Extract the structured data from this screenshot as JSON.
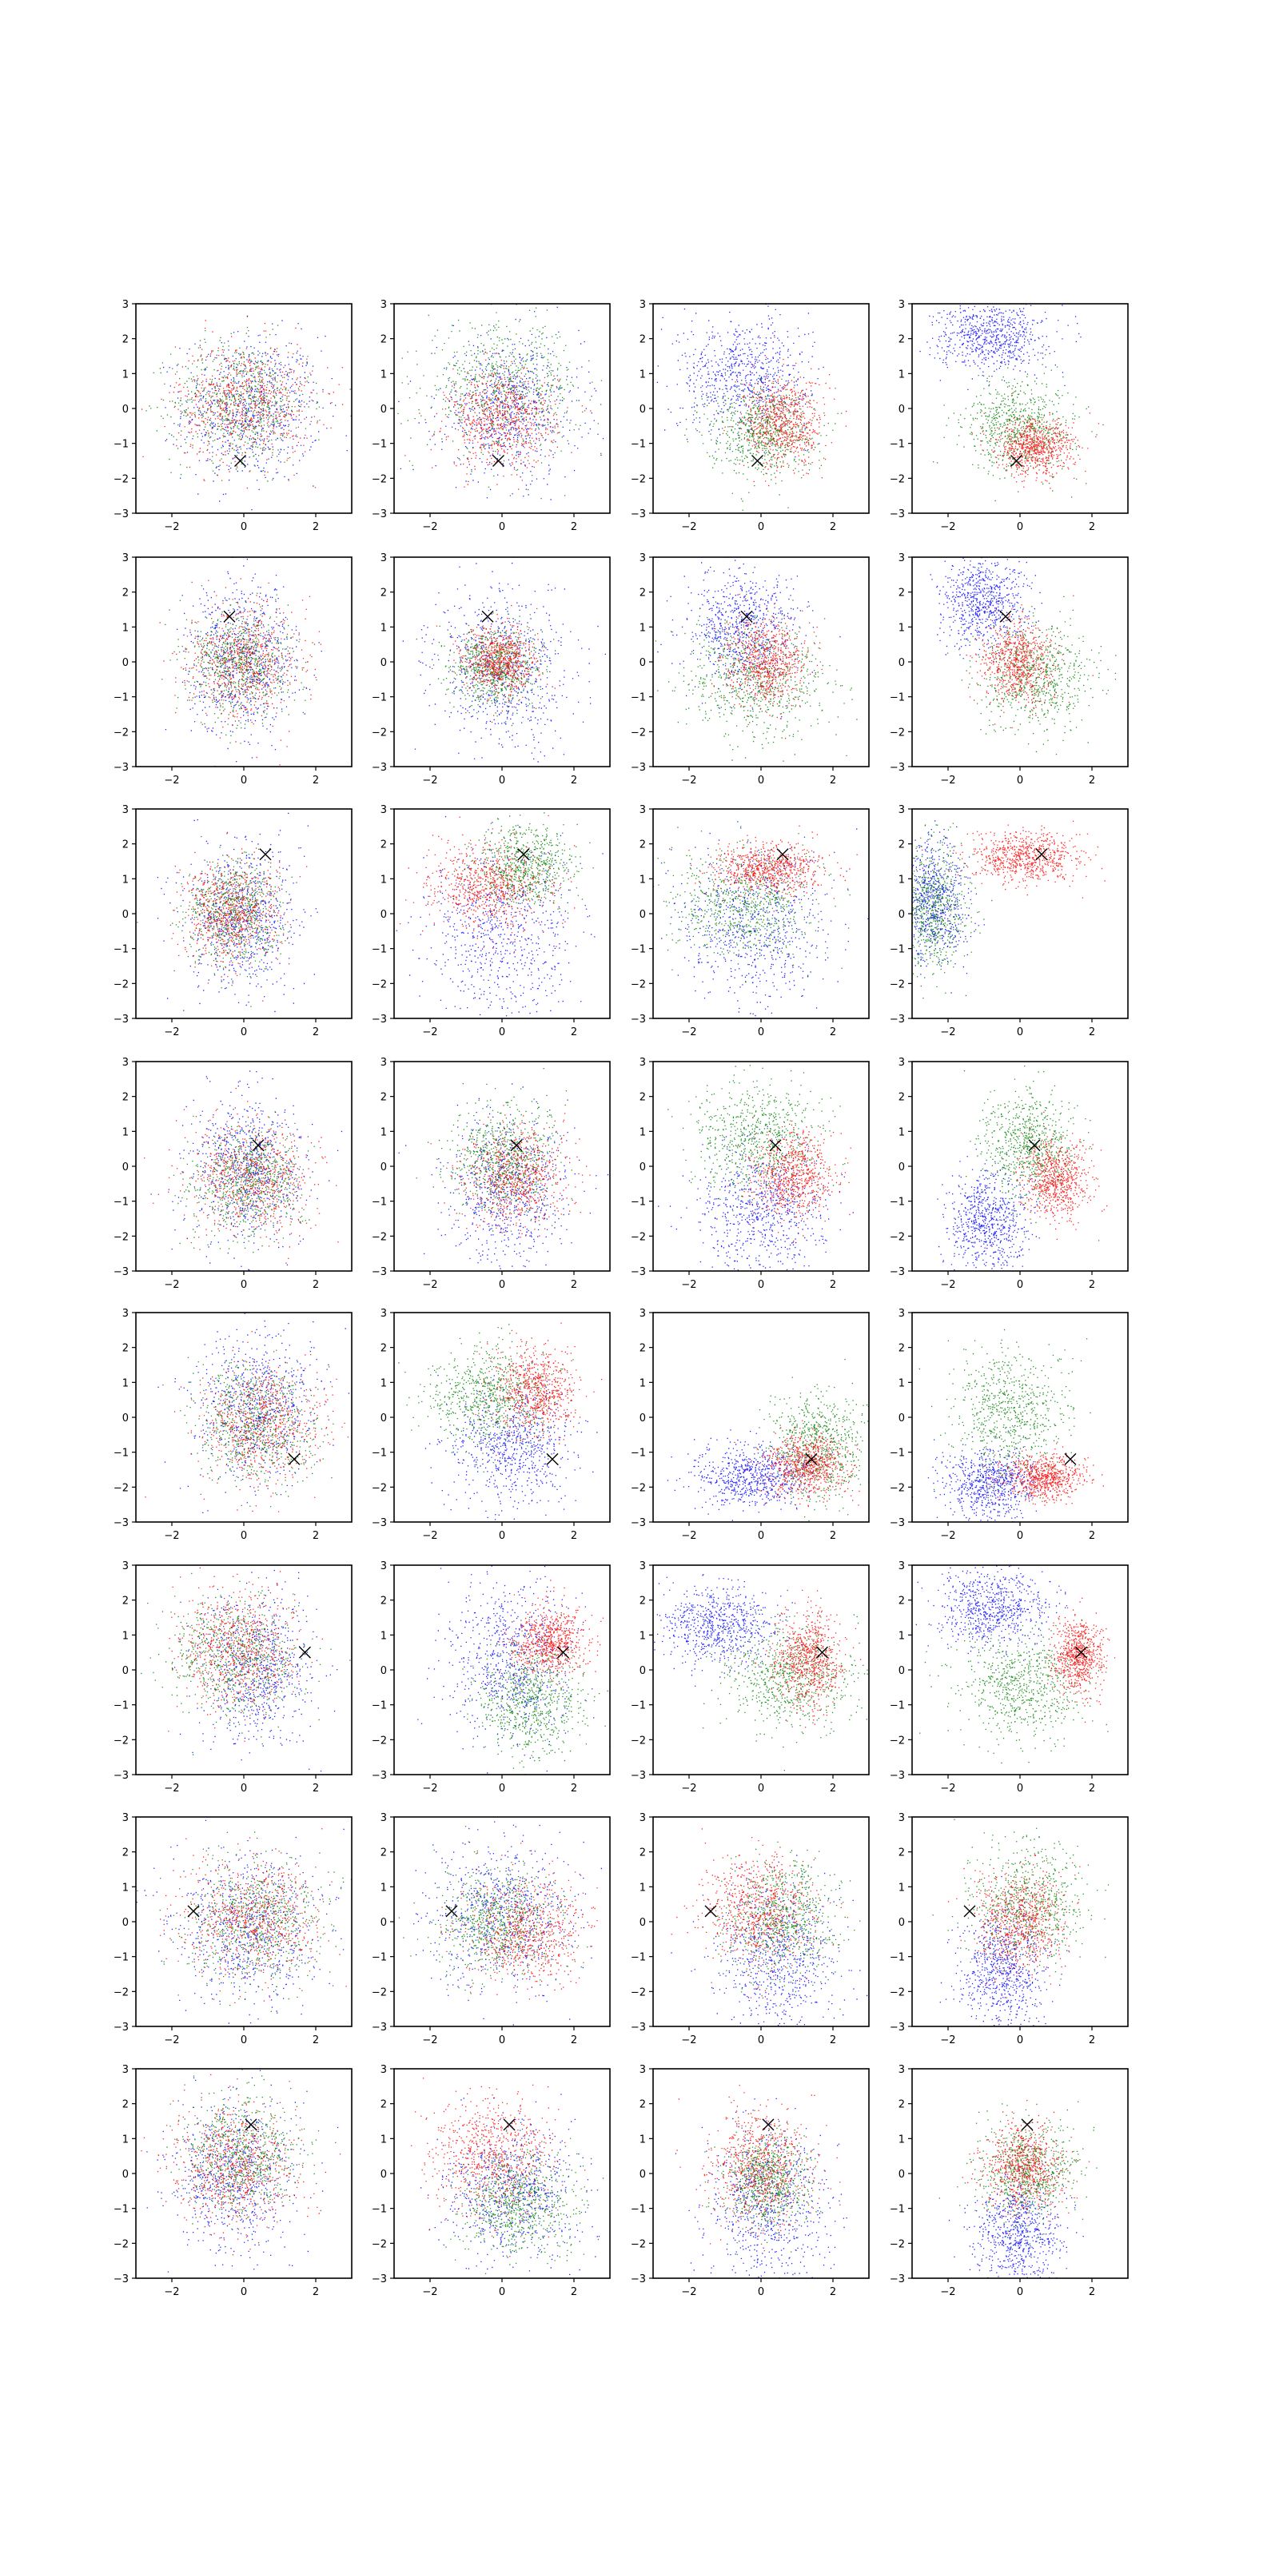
{
  "colors": {
    "blue": "#0000ff",
    "green": "#008000",
    "red": "#ff0000",
    "marker": "#000000"
  },
  "chart_data": {
    "type": "scatter",
    "grid": false,
    "layout": {
      "rows": 8,
      "cols": 4
    },
    "axes": {
      "xlim": [
        -3,
        3
      ],
      "ylim": [
        -3,
        3
      ],
      "xticks": [
        -2,
        0,
        2
      ],
      "yticks": [
        -3,
        -2,
        -1,
        0,
        1,
        2,
        3
      ],
      "xtick_labels": [
        "−2",
        "0",
        "2"
      ],
      "ytick_labels": [
        "−3",
        "−2",
        "−1",
        "0",
        "1",
        "2",
        "3"
      ]
    },
    "rows": [
      {
        "marker": [
          -0.1,
          -1.5
        ],
        "panels": [
          [
            {
              "c": "blue",
              "mx": 0.2,
              "my": 0.0,
              "sx": 0.95,
              "sy": 1.05
            },
            {
              "c": "green",
              "mx": -0.1,
              "my": 0.2,
              "sx": 0.95,
              "sy": 0.85
            },
            {
              "c": "red",
              "mx": 0.0,
              "my": 0.2,
              "sx": 0.95,
              "sy": 0.85
            }
          ],
          [
            {
              "c": "blue",
              "mx": 0.2,
              "my": 0.0,
              "sx": 1.0,
              "sy": 1.0
            },
            {
              "c": "green",
              "mx": 0.0,
              "my": 0.6,
              "sx": 1.05,
              "sy": 0.9
            },
            {
              "c": "red",
              "mx": 0.0,
              "my": -0.3,
              "sx": 0.75,
              "sy": 0.7
            }
          ],
          [
            {
              "c": "blue",
              "mx": -0.5,
              "my": 1.0,
              "sx": 0.9,
              "sy": 0.8
            },
            {
              "c": "green",
              "mx": 0.0,
              "my": -0.6,
              "sx": 0.75,
              "sy": 0.65
            },
            {
              "c": "red",
              "mx": 0.6,
              "my": -0.4,
              "sx": 0.55,
              "sy": 0.65
            }
          ],
          [
            {
              "c": "blue",
              "mx": -0.8,
              "my": 2.1,
              "sx": 0.75,
              "sy": 0.5
            },
            {
              "c": "green",
              "mx": 0.0,
              "my": -0.5,
              "sx": 0.75,
              "sy": 0.65
            },
            {
              "c": "red",
              "mx": 0.4,
              "my": -1.1,
              "sx": 0.55,
              "sy": 0.4
            }
          ]
        ]
      },
      {
        "marker": [
          -0.4,
          1.3
        ],
        "panels": [
          [
            {
              "c": "blue",
              "mx": 0.0,
              "my": 0.1,
              "sx": 0.75,
              "sy": 1.05
            },
            {
              "c": "green",
              "mx": -0.1,
              "my": 0.0,
              "sx": 0.7,
              "sy": 0.75
            },
            {
              "c": "red",
              "mx": 0.0,
              "my": 0.0,
              "sx": 0.75,
              "sy": 0.8
            }
          ],
          [
            {
              "c": "blue",
              "mx": 0.0,
              "my": -0.2,
              "sx": 0.95,
              "sy": 1.1
            },
            {
              "c": "green",
              "mx": -0.2,
              "my": -0.1,
              "sx": 0.6,
              "sy": 0.55
            },
            {
              "c": "red",
              "mx": -0.1,
              "my": 0.0,
              "sx": 0.5,
              "sy": 0.5
            }
          ],
          [
            {
              "c": "blue",
              "mx": -0.5,
              "my": 1.0,
              "sx": 0.8,
              "sy": 0.85
            },
            {
              "c": "green",
              "mx": -0.1,
              "my": -0.5,
              "sx": 1.0,
              "sy": 0.8
            },
            {
              "c": "red",
              "mx": 0.1,
              "my": 0.0,
              "sx": 0.55,
              "sy": 0.6
            }
          ],
          [
            {
              "c": "blue",
              "mx": -1.0,
              "my": 1.8,
              "sx": 0.6,
              "sy": 0.65
            },
            {
              "c": "green",
              "mx": 0.4,
              "my": -0.4,
              "sx": 0.8,
              "sy": 0.75
            },
            {
              "c": "red",
              "mx": -0.1,
              "my": 0.0,
              "sx": 0.5,
              "sy": 0.6
            }
          ]
        ]
      },
      {
        "marker": [
          0.6,
          1.7
        ],
        "panels": [
          [
            {
              "c": "blue",
              "mx": -0.1,
              "my": -0.1,
              "sx": 0.75,
              "sy": 1.05
            },
            {
              "c": "green",
              "mx": -0.3,
              "my": 0.0,
              "sx": 0.65,
              "sy": 0.75
            },
            {
              "c": "red",
              "mx": -0.4,
              "my": 0.0,
              "sx": 0.65,
              "sy": 0.75
            }
          ],
          [
            {
              "c": "blue",
              "mx": 0.0,
              "my": -0.6,
              "sx": 1.05,
              "sy": 1.25
            },
            {
              "c": "green",
              "mx": 0.6,
              "my": 1.4,
              "sx": 0.65,
              "sy": 0.55
            },
            {
              "c": "red",
              "mx": -0.4,
              "my": 0.8,
              "sx": 0.85,
              "sy": 0.6
            }
          ],
          [
            {
              "c": "blue",
              "mx": -0.2,
              "my": -0.3,
              "sx": 1.0,
              "sy": 1.1
            },
            {
              "c": "green",
              "mx": -0.5,
              "my": 0.3,
              "sx": 1.0,
              "sy": 0.75
            },
            {
              "c": "red",
              "mx": 0.2,
              "my": 1.3,
              "sx": 0.75,
              "sy": 0.35
            }
          ],
          [
            {
              "c": "blue",
              "mx": -2.4,
              "my": 0.4,
              "sx": 0.45,
              "sy": 0.9
            },
            {
              "c": "green",
              "mx": -2.5,
              "my": 0.1,
              "sx": 0.5,
              "sy": 0.9
            },
            {
              "c": "red",
              "mx": 0.2,
              "my": 1.6,
              "sx": 0.75,
              "sy": 0.35
            }
          ]
        ]
      },
      {
        "marker": [
          0.4,
          0.6
        ],
        "panels": [
          [
            {
              "c": "blue",
              "mx": 0.1,
              "my": -0.1,
              "sx": 0.8,
              "sy": 1.1
            },
            {
              "c": "green",
              "mx": 0.1,
              "my": -0.4,
              "sx": 0.75,
              "sy": 0.75
            },
            {
              "c": "red",
              "mx": 0.2,
              "my": -0.3,
              "sx": 0.85,
              "sy": 0.8
            }
          ],
          [
            {
              "c": "blue",
              "mx": 0.2,
              "my": -0.6,
              "sx": 0.85,
              "sy": 1.05
            },
            {
              "c": "green",
              "mx": 0.0,
              "my": 0.2,
              "sx": 0.75,
              "sy": 0.75
            },
            {
              "c": "red",
              "mx": 0.4,
              "my": -0.3,
              "sx": 0.7,
              "sy": 0.7
            }
          ],
          [
            {
              "c": "blue",
              "mx": 0.0,
              "my": -1.3,
              "sx": 0.9,
              "sy": 0.9
            },
            {
              "c": "green",
              "mx": -0.1,
              "my": 0.9,
              "sx": 0.85,
              "sy": 0.75
            },
            {
              "c": "red",
              "mx": 0.9,
              "my": -0.2,
              "sx": 0.55,
              "sy": 0.6
            }
          ],
          [
            {
              "c": "blue",
              "mx": -0.9,
              "my": -1.6,
              "sx": 0.55,
              "sy": 0.7
            },
            {
              "c": "green",
              "mx": 0.2,
              "my": 0.6,
              "sx": 0.65,
              "sy": 0.75
            },
            {
              "c": "red",
              "mx": 1.0,
              "my": -0.4,
              "sx": 0.45,
              "sy": 0.5
            }
          ]
        ]
      },
      {
        "marker": [
          1.4,
          -1.2
        ],
        "panels": [
          [
            {
              "c": "blue",
              "mx": 0.3,
              "my": 0.3,
              "sx": 0.8,
              "sy": 1.05
            },
            {
              "c": "green",
              "mx": 0.3,
              "my": -0.2,
              "sx": 0.85,
              "sy": 0.85
            },
            {
              "c": "red",
              "mx": 0.5,
              "my": -0.2,
              "sx": 0.85,
              "sy": 0.85
            }
          ],
          [
            {
              "c": "blue",
              "mx": 0.3,
              "my": -0.9,
              "sx": 0.85,
              "sy": 0.85
            },
            {
              "c": "green",
              "mx": -0.4,
              "my": 0.6,
              "sx": 0.85,
              "sy": 0.7
            },
            {
              "c": "red",
              "mx": 0.9,
              "my": 0.8,
              "sx": 0.55,
              "sy": 0.6
            }
          ],
          [
            {
              "c": "blue",
              "mx": -0.3,
              "my": -1.7,
              "sx": 0.8,
              "sy": 0.45
            },
            {
              "c": "green",
              "mx": 1.6,
              "my": -0.8,
              "sx": 0.6,
              "sy": 0.75
            },
            {
              "c": "red",
              "mx": 1.3,
              "my": -1.4,
              "sx": 0.55,
              "sy": 0.45
            }
          ],
          [
            {
              "c": "blue",
              "mx": -0.9,
              "my": -1.9,
              "sx": 0.65,
              "sy": 0.5
            },
            {
              "c": "green",
              "mx": -0.3,
              "my": 0.1,
              "sx": 0.75,
              "sy": 0.9
            },
            {
              "c": "red",
              "mx": 0.7,
              "my": -1.7,
              "sx": 0.55,
              "sy": 0.3
            }
          ]
        ]
      },
      {
        "marker": [
          1.7,
          0.5
        ],
        "panels": [
          [
            {
              "c": "blue",
              "mx": 0.3,
              "my": 0.0,
              "sx": 0.8,
              "sy": 1.05
            },
            {
              "c": "green",
              "mx": -0.3,
              "my": 0.4,
              "sx": 0.9,
              "sy": 0.85
            },
            {
              "c": "red",
              "mx": -0.2,
              "my": 0.6,
              "sx": 0.8,
              "sy": 0.85
            }
          ],
          [
            {
              "c": "blue",
              "mx": 0.2,
              "my": 0.3,
              "sx": 0.85,
              "sy": 1.1
            },
            {
              "c": "green",
              "mx": 0.8,
              "my": -0.9,
              "sx": 0.7,
              "sy": 0.75
            },
            {
              "c": "red",
              "mx": 1.3,
              "my": 0.8,
              "sx": 0.5,
              "sy": 0.5
            }
          ],
          [
            {
              "c": "blue",
              "mx": -1.2,
              "my": 1.3,
              "sx": 0.8,
              "sy": 0.55
            },
            {
              "c": "green",
              "mx": 0.8,
              "my": -0.2,
              "sx": 0.85,
              "sy": 0.75
            },
            {
              "c": "red",
              "mx": 1.3,
              "my": 0.3,
              "sx": 0.45,
              "sy": 0.7
            }
          ],
          [
            {
              "c": "blue",
              "mx": -0.8,
              "my": 1.8,
              "sx": 0.75,
              "sy": 0.55
            },
            {
              "c": "green",
              "mx": 0.0,
              "my": -0.4,
              "sx": 0.85,
              "sy": 0.75
            },
            {
              "c": "red",
              "mx": 1.6,
              "my": 0.4,
              "sx": 0.35,
              "sy": 0.55
            }
          ]
        ]
      },
      {
        "marker": [
          -1.4,
          0.3
        ],
        "panels": [
          [
            {
              "c": "blue",
              "mx": 0.1,
              "my": -0.1,
              "sx": 1.0,
              "sy": 1.1
            },
            {
              "c": "green",
              "mx": 0.3,
              "my": 0.0,
              "sx": 0.95,
              "sy": 0.9
            },
            {
              "c": "red",
              "mx": 0.3,
              "my": 0.1,
              "sx": 0.95,
              "sy": 0.85
            }
          ],
          [
            {
              "c": "blue",
              "mx": 0.0,
              "my": 0.3,
              "sx": 1.0,
              "sy": 1.05
            },
            {
              "c": "green",
              "mx": -0.2,
              "my": 0.0,
              "sx": 0.85,
              "sy": 0.8
            },
            {
              "c": "red",
              "mx": 0.7,
              "my": -0.3,
              "sx": 0.8,
              "sy": 0.75
            }
          ],
          [
            {
              "c": "blue",
              "mx": 0.4,
              "my": -1.0,
              "sx": 0.85,
              "sy": 1.05
            },
            {
              "c": "green",
              "mx": 0.6,
              "my": 0.1,
              "sx": 0.75,
              "sy": 0.8
            },
            {
              "c": "red",
              "mx": -0.1,
              "my": 0.4,
              "sx": 0.75,
              "sy": 0.8
            }
          ],
          [
            {
              "c": "blue",
              "mx": -0.5,
              "my": -1.4,
              "sx": 0.55,
              "sy": 0.85
            },
            {
              "c": "green",
              "mx": 0.2,
              "my": 0.5,
              "sx": 0.8,
              "sy": 0.85
            },
            {
              "c": "red",
              "mx": 0.0,
              "my": 0.0,
              "sx": 0.6,
              "sy": 0.7
            }
          ]
        ]
      },
      {
        "marker": [
          0.2,
          1.4
        ],
        "panels": [
          [
            {
              "c": "blue",
              "mx": -0.3,
              "my": -0.1,
              "sx": 0.85,
              "sy": 1.05
            },
            {
              "c": "green",
              "mx": -0.1,
              "my": 0.6,
              "sx": 0.8,
              "sy": 0.8
            },
            {
              "c": "red",
              "mx": -0.3,
              "my": 0.2,
              "sx": 0.85,
              "sy": 0.85
            }
          ],
          [
            {
              "c": "blue",
              "mx": 0.3,
              "my": -0.6,
              "sx": 0.9,
              "sy": 0.95
            },
            {
              "c": "green",
              "mx": 0.5,
              "my": -0.8,
              "sx": 0.8,
              "sy": 0.75
            },
            {
              "c": "red",
              "mx": -0.3,
              "my": 0.5,
              "sx": 0.85,
              "sy": 0.8
            }
          ],
          [
            {
              "c": "blue",
              "mx": 0.2,
              "my": -0.9,
              "sx": 0.85,
              "sy": 1.1
            },
            {
              "c": "green",
              "mx": 0.1,
              "my": -0.2,
              "sx": 0.55,
              "sy": 0.65
            },
            {
              "c": "red",
              "mx": 0.0,
              "my": 0.2,
              "sx": 0.7,
              "sy": 0.8
            }
          ],
          [
            {
              "c": "blue",
              "mx": -0.1,
              "my": -1.7,
              "sx": 0.6,
              "sy": 0.75
            },
            {
              "c": "green",
              "mx": 0.2,
              "my": 0.1,
              "sx": 0.65,
              "sy": 0.7
            },
            {
              "c": "red",
              "mx": 0.1,
              "my": 0.2,
              "sx": 0.55,
              "sy": 0.6
            }
          ]
        ]
      }
    ]
  }
}
